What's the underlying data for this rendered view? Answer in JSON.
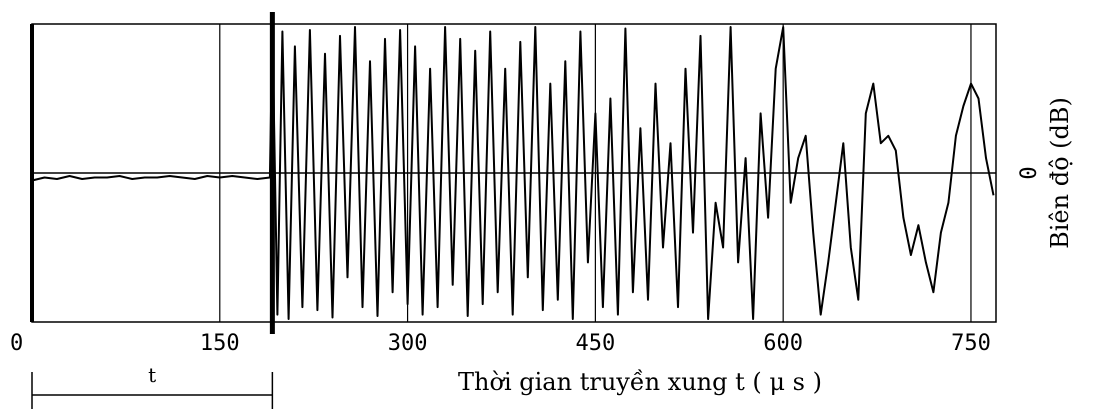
{
  "chart_data": {
    "type": "line",
    "title": "",
    "xlabel": "Thời gian truyền xung  t  ( μ s )",
    "ylabel": "Biên độ (dB)",
    "y_zero_label": "0",
    "xlim": [
      0,
      770
    ],
    "ylim": [
      -1,
      1
    ],
    "x_ticks": [
      0,
      150,
      300,
      450,
      600,
      750
    ],
    "x_tick_labels": [
      "0",
      "150",
      "300",
      "450",
      "600",
      "750"
    ],
    "grid_x": [
      150,
      300,
      450,
      600,
      750
    ],
    "grid": true,
    "pulse_start": 192,
    "t_span": [
      0,
      192
    ],
    "t_label": "t",
    "series": [
      {
        "name": "",
        "x": [
          0,
          10,
          20,
          30,
          40,
          50,
          60,
          70,
          80,
          90,
          100,
          110,
          120,
          130,
          140,
          150,
          160,
          170,
          180,
          190,
          192,
          196,
          200,
          205,
          210,
          216,
          222,
          228,
          234,
          240,
          246,
          252,
          258,
          264,
          270,
          276,
          282,
          288,
          294,
          300,
          306,
          312,
          318,
          324,
          330,
          336,
          342,
          348,
          354,
          360,
          366,
          372,
          378,
          384,
          390,
          396,
          402,
          408,
          414,
          420,
          426,
          432,
          438,
          444,
          450,
          456,
          462,
          468,
          474,
          480,
          486,
          492,
          498,
          504,
          510,
          516,
          522,
          528,
          534,
          540,
          546,
          552,
          558,
          564,
          570,
          576,
          582,
          588,
          594,
          600,
          606,
          612,
          618,
          624,
          630,
          636,
          642,
          648,
          654,
          660,
          666,
          672,
          678,
          684,
          690,
          696,
          702,
          708,
          714,
          720,
          726,
          732,
          738,
          744,
          750,
          756,
          762,
          768
        ],
        "values": [
          -0.05,
          -0.03,
          -0.04,
          -0.02,
          -0.04,
          -0.03,
          -0.03,
          -0.02,
          -0.04,
          -0.03,
          -0.03,
          -0.02,
          -0.03,
          -0.04,
          -0.02,
          -0.03,
          -0.02,
          -0.03,
          -0.04,
          -0.03,
          0.98,
          -0.95,
          0.95,
          -0.98,
          0.85,
          -0.9,
          0.96,
          -0.92,
          0.8,
          -0.97,
          0.92,
          -0.7,
          0.98,
          -0.9,
          0.75,
          -0.96,
          0.9,
          -0.8,
          0.96,
          -0.88,
          0.85,
          -0.95,
          0.7,
          -0.9,
          0.98,
          -0.75,
          0.9,
          -0.96,
          0.82,
          -0.88,
          0.95,
          -0.8,
          0.7,
          -0.95,
          0.88,
          -0.7,
          0.98,
          -0.92,
          0.6,
          -0.85,
          0.75,
          -0.98,
          0.95,
          -0.6,
          0.4,
          -0.9,
          0.5,
          -0.95,
          0.97,
          -0.8,
          0.3,
          -0.85,
          0.6,
          -0.5,
          0.2,
          -0.9,
          0.7,
          -0.4,
          0.92,
          -0.98,
          -0.2,
          -0.5,
          0.98,
          -0.6,
          0.1,
          -0.98,
          0.4,
          -0.3,
          0.7,
          0.98,
          -0.2,
          0.1,
          0.25,
          -0.4,
          -0.95,
          -0.6,
          -0.2,
          0.2,
          -0.5,
          -0.85,
          0.4,
          0.6,
          0.2,
          0.25,
          0.15,
          -0.3,
          -0.55,
          -0.35,
          -0.6,
          -0.8,
          -0.4,
          -0.2,
          0.25,
          0.45,
          0.6,
          0.5,
          0.1,
          -0.15
        ]
      }
    ]
  }
}
